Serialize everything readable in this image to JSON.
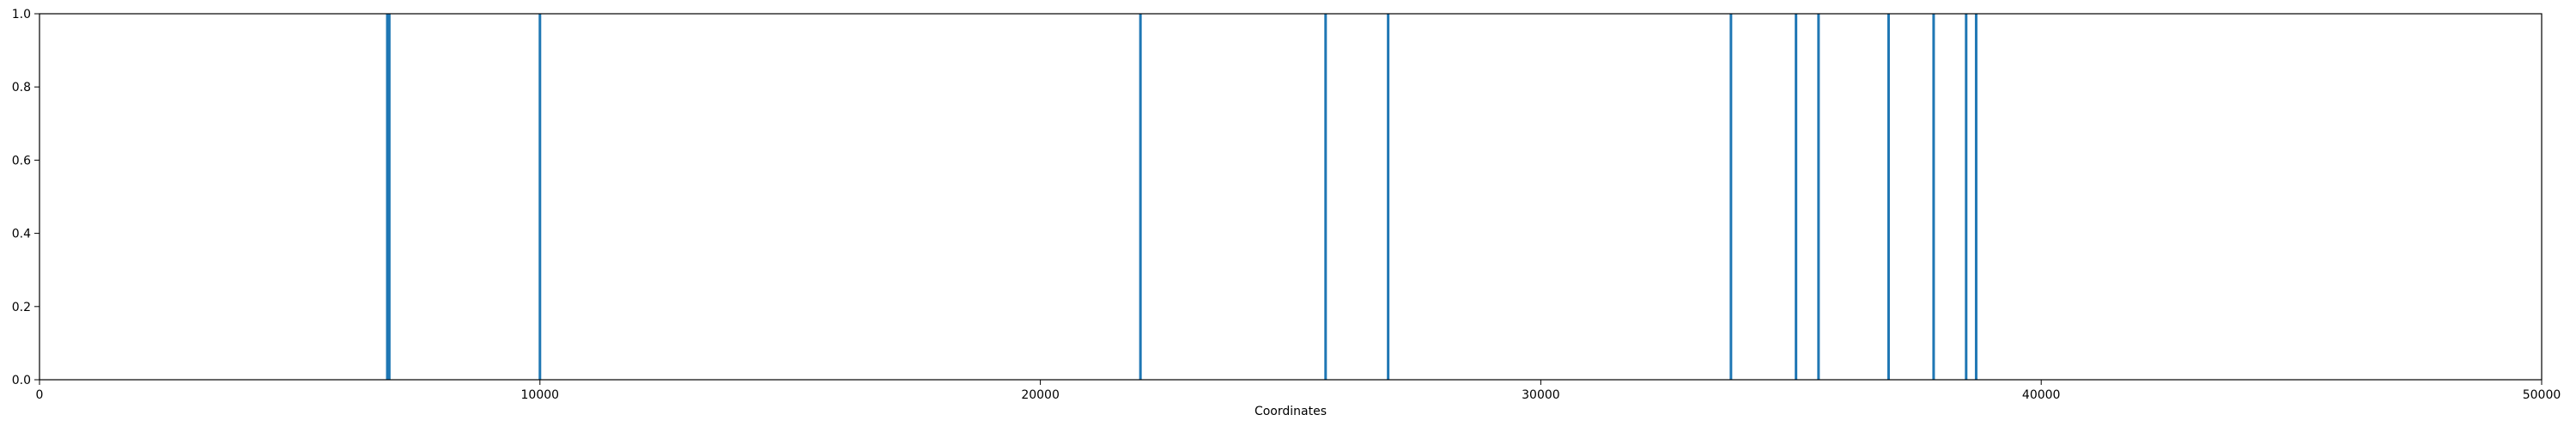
{
  "chart_data": {
    "type": "bar",
    "title": "",
    "xlabel": "Coordinates",
    "ylabel": "",
    "xlim": [
      0,
      50000
    ],
    "ylim": [
      0.0,
      1.0
    ],
    "grid": false,
    "x_ticks": [
      {
        "value": 0,
        "label": "0"
      },
      {
        "value": 10000,
        "label": "10000"
      },
      {
        "value": 20000,
        "label": "20000"
      },
      {
        "value": 30000,
        "label": "30000"
      },
      {
        "value": 40000,
        "label": "40000"
      },
      {
        "value": 50000,
        "label": "50000"
      }
    ],
    "y_ticks": [
      {
        "value": 0.0,
        "label": "0.0"
      },
      {
        "value": 0.2,
        "label": "0.2"
      },
      {
        "value": 0.4,
        "label": "0.4"
      },
      {
        "value": 0.6,
        "label": "0.6"
      },
      {
        "value": 0.8,
        "label": "0.8"
      },
      {
        "value": 1.0,
        "label": "1.0"
      }
    ],
    "color": "#1f77b4",
    "series": [
      {
        "x": [
          6950,
          6990,
          10000,
          22000,
          25700,
          26950,
          33800,
          35100,
          35550,
          36950,
          37850,
          38500,
          38700
        ],
        "values": [
          1,
          1,
          1,
          1,
          1,
          1,
          1,
          1,
          1,
          1,
          1,
          1,
          1
        ]
      }
    ]
  }
}
